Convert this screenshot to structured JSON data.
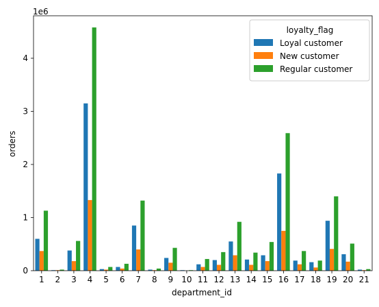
{
  "chart_data": {
    "type": "bar",
    "xlabel": "department_id",
    "ylabel": "orders",
    "y_multiplier_label": "1e6",
    "categories": [
      "1",
      "2",
      "3",
      "4",
      "5",
      "6",
      "7",
      "8",
      "9",
      "10",
      "11",
      "12",
      "13",
      "14",
      "15",
      "16",
      "17",
      "18",
      "19",
      "20",
      "21"
    ],
    "ylim": [
      0,
      4.8
    ],
    "yticks": [
      0,
      1,
      2,
      3,
      4
    ],
    "grid": false,
    "legend": {
      "title": "loyalty_flag",
      "placement": "top-right"
    },
    "series": [
      {
        "name": "Loyal customer",
        "color": "#1f77b4",
        "values": [
          0.6,
          0.01,
          0.38,
          3.15,
          0.03,
          0.07,
          0.85,
          0.02,
          0.24,
          0.01,
          0.12,
          0.2,
          0.55,
          0.21,
          0.29,
          1.83,
          0.19,
          0.16,
          0.94,
          0.31,
          0.02
        ]
      },
      {
        "name": "New customer",
        "color": "#ff7f0e",
        "values": [
          0.37,
          0.01,
          0.18,
          1.33,
          0.02,
          0.04,
          0.4,
          0.01,
          0.15,
          0.0,
          0.07,
          0.11,
          0.29,
          0.11,
          0.18,
          0.75,
          0.12,
          0.06,
          0.41,
          0.17,
          0.01
        ]
      },
      {
        "name": "Regular customer",
        "color": "#2ca02c",
        "values": [
          1.13,
          0.02,
          0.56,
          4.58,
          0.07,
          0.13,
          1.32,
          0.04,
          0.43,
          0.01,
          0.22,
          0.35,
          0.92,
          0.34,
          0.54,
          2.59,
          0.37,
          0.19,
          1.4,
          0.51,
          0.03
        ]
      }
    ]
  }
}
